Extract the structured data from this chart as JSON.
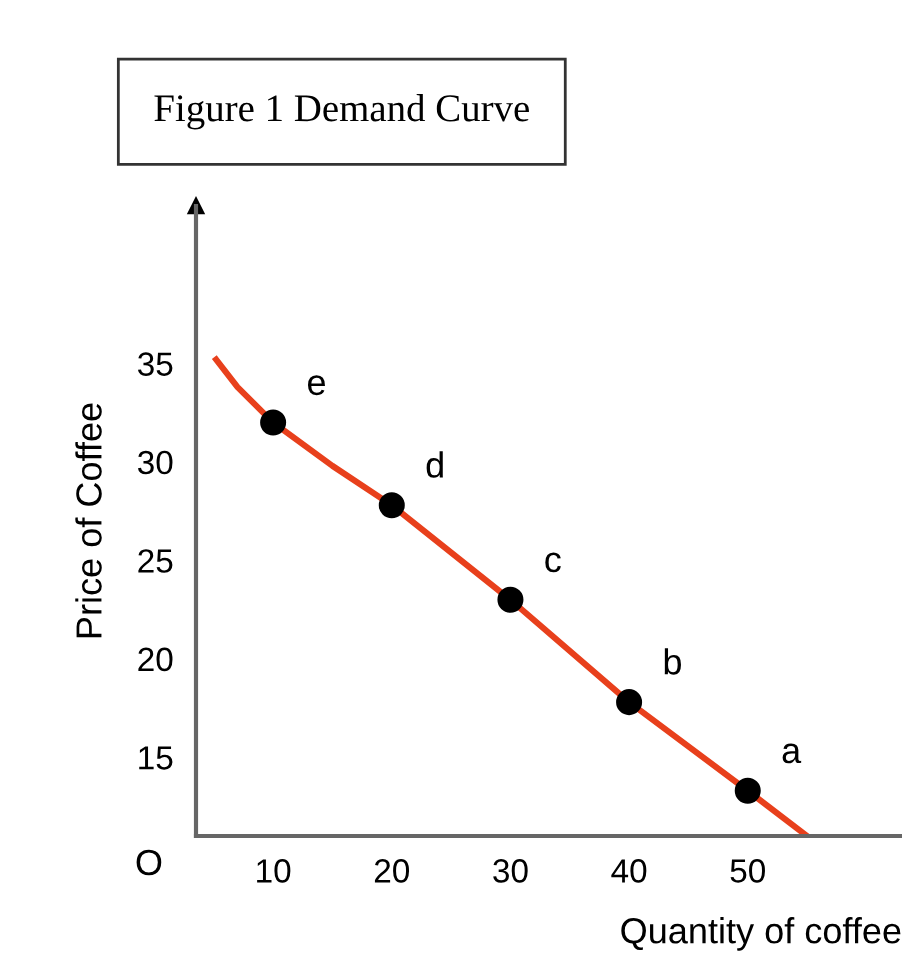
{
  "chart_data": {
    "type": "line",
    "title": "Figure 1 Demand Curve",
    "xlabel": "Quantity of coffee",
    "ylabel": "Price of Coffee",
    "xlim": [
      3.5,
      63
    ],
    "ylim": [
      11,
      43
    ],
    "xticks": [
      10,
      20,
      30,
      40,
      50
    ],
    "yticks": [
      15,
      20,
      25,
      30,
      35
    ],
    "grid": false,
    "legend": false,
    "series": [
      {
        "color": "#e8401c",
        "marker": "none",
        "x": [
          5.2,
          7,
          10,
          15,
          20,
          30,
          40,
          50,
          55
        ],
        "values": [
          35.2,
          33.8,
          32,
          29.8,
          27.8,
          23,
          17.8,
          13.3,
          11
        ]
      },
      {
        "type": "scatter",
        "color": "#000000",
        "marker": "circle",
        "x": [
          10,
          20,
          30,
          40,
          50
        ],
        "values": [
          32,
          27.8,
          23,
          17.8,
          13.3
        ]
      }
    ],
    "annotations": [
      {
        "text": "e",
        "x": 10,
        "y": 32
      },
      {
        "text": "d",
        "x": 20,
        "y": 27.8
      },
      {
        "text": "c",
        "x": 30,
        "y": 23
      },
      {
        "text": "b",
        "x": 40,
        "y": 17.8
      },
      {
        "text": "a",
        "x": 50,
        "y": 13.3
      },
      "O"
    ]
  }
}
